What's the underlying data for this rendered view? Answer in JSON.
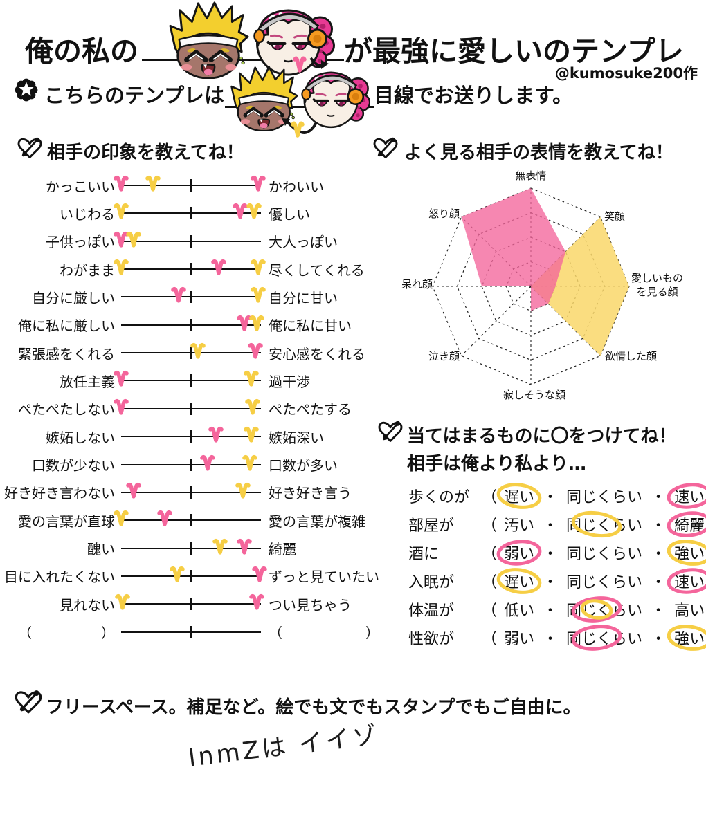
{
  "title": {
    "prefix": "俺の私の",
    "suffix": "が最強に愛しいのテンプレ",
    "credit": "@kumosuke200作"
  },
  "subtitle": {
    "prefix": "こちらのテンプレは",
    "suffix": "目線でお送りします。"
  },
  "colors": {
    "pink": "#F4659B",
    "yellow": "#F6CE45",
    "radar_pink": "#F4659B",
    "radar_yellow": "#F9D76A",
    "ink": "#111111",
    "blonde_hair": "#F3CF2E",
    "blonde_skin": "#A5766B",
    "pink_hair": "#E73A93",
    "pale_skin": "#F8EFE5",
    "headphone_orange": "#F59A20"
  },
  "characters": {
    "left": "blonde-spiky-hair-character",
    "right": "pink-haired-headphones-character"
  },
  "impressions": {
    "heading": "相手の印象を教えてね！",
    "rows": [
      {
        "left": "かっこいい",
        "right": "かわいい",
        "hearts": [
          {
            "c": "pink",
            "p": 0.0
          },
          {
            "c": "yellow",
            "p": 0.23
          },
          {
            "c": "pink",
            "p": 0.98
          }
        ]
      },
      {
        "left": "いじわる",
        "right": "優しい",
        "hearts": [
          {
            "c": "yellow",
            "p": 0.0
          },
          {
            "c": "pink",
            "p": 0.85
          },
          {
            "c": "yellow",
            "p": 0.95
          }
        ]
      },
      {
        "left": "子供っぽい",
        "right": "大人っぽい",
        "hearts": [
          {
            "c": "pink",
            "p": 0.0
          },
          {
            "c": "yellow",
            "p": 0.09
          }
        ]
      },
      {
        "left": "わがまま",
        "right": "尽くしてくれる",
        "hearts": [
          {
            "c": "yellow",
            "p": 0.0
          },
          {
            "c": "pink",
            "p": 0.7
          },
          {
            "c": "yellow",
            "p": 0.98
          }
        ]
      },
      {
        "left": "自分に厳しい",
        "right": "自分に甘い",
        "hearts": [
          {
            "c": "pink",
            "p": 0.41
          },
          {
            "c": "yellow",
            "p": 0.98
          }
        ]
      },
      {
        "left": "俺に私に厳しい",
        "right": "俺に私に甘い",
        "hearts": [
          {
            "c": "pink",
            "p": 0.88
          },
          {
            "c": "yellow",
            "p": 0.97
          }
        ]
      },
      {
        "left": "緊張感をくれる",
        "right": "安心感をくれる",
        "hearts": [
          {
            "c": "yellow",
            "p": 0.55
          },
          {
            "c": "pink",
            "p": 0.96
          }
        ]
      },
      {
        "left": "放任主義",
        "right": "過干渉",
        "hearts": [
          {
            "c": "pink",
            "p": 0.0
          },
          {
            "c": "yellow",
            "p": 0.93
          }
        ]
      },
      {
        "left": "ぺたぺたしない",
        "right": "ぺたぺたする",
        "hearts": [
          {
            "c": "pink",
            "p": 0.0
          },
          {
            "c": "yellow",
            "p": 0.94
          }
        ]
      },
      {
        "left": "嫉妬しない",
        "right": "嫉妬深い",
        "hearts": [
          {
            "c": "pink",
            "p": 0.68
          },
          {
            "c": "yellow",
            "p": 0.93
          }
        ]
      },
      {
        "left": "口数が少ない",
        "right": "口数が多い",
        "hearts": [
          {
            "c": "pink",
            "p": 0.62
          },
          {
            "c": "yellow",
            "p": 0.92
          }
        ]
      },
      {
        "left": "好き好き言わない",
        "right": "好き好き言う",
        "hearts": [
          {
            "c": "pink",
            "p": 0.09
          },
          {
            "c": "yellow",
            "p": 0.87
          }
        ]
      },
      {
        "left": "愛の言葉が直球",
        "right": "愛の言葉が複雑",
        "hearts": [
          {
            "c": "yellow",
            "p": 0.0
          },
          {
            "c": "pink",
            "p": 0.31
          }
        ]
      },
      {
        "left": "醜い",
        "right": "綺麗",
        "hearts": [
          {
            "c": "yellow",
            "p": 0.71
          },
          {
            "c": "pink",
            "p": 0.88
          }
        ]
      },
      {
        "left": "目に入れたくない",
        "right": "ずっと見ていたい",
        "hearts": [
          {
            "c": "yellow",
            "p": 0.4
          },
          {
            "c": "pink",
            "p": 0.99
          }
        ]
      },
      {
        "left": "見れない",
        "right": "つい見ちゃう",
        "hearts": [
          {
            "c": "yellow",
            "p": 0.01
          },
          {
            "c": "pink",
            "p": 0.97
          }
        ]
      },
      {
        "left": "（　　　　　）",
        "right": "（　　　　　　）",
        "hearts": [],
        "blank": true
      }
    ]
  },
  "expressions": {
    "heading": "よく見る相手の表情を教えてね！"
  },
  "chart_data": {
    "type": "radar",
    "title": "よく見る相手の表情を教えてね！",
    "categories": [
      "無表情",
      "笑顔",
      "愛しいものを見る顔",
      "欲情した顔",
      "寂しそうな顔",
      "泣き顔",
      "呆れ顔",
      "怒り顔"
    ],
    "label_lines": [
      [
        "無表情"
      ],
      [
        "笑顔"
      ],
      [
        "愛しいもの",
        "を見る顔"
      ],
      [
        "欲情した顔"
      ],
      [
        "寂しそうな顔"
      ],
      [
        "泣き顔"
      ],
      [
        "呆れ顔"
      ],
      [
        "怒り顔"
      ]
    ],
    "max": 4,
    "rings": 4,
    "grid": "dashed",
    "legend_position": "none",
    "series": [
      {
        "name": "pink",
        "color": "#F4659B",
        "values": [
          4,
          2,
          1,
          1,
          1,
          0,
          2,
          4
        ]
      },
      {
        "name": "yellow",
        "color": "#F9D76A",
        "values": [
          0,
          4,
          4,
          4,
          0,
          0,
          0,
          0
        ]
      }
    ]
  },
  "circles": {
    "heading1": "当てはまるものに〇をつけてね！",
    "heading2": "相手は俺より私より…",
    "open": "（",
    "close": "）",
    "dot": "・",
    "rows": [
      {
        "label": "歩くのが",
        "options": [
          "遅い",
          "同じくらい",
          "速い"
        ],
        "marks": [
          {
            "opt": 0,
            "c": "yellow"
          },
          {
            "opt": 2,
            "c": "pink"
          }
        ]
      },
      {
        "label": "部屋が",
        "options": [
          "汚い",
          "同じくらい",
          "綺麗"
        ],
        "marks": [
          {
            "opt": 1,
            "c": "yellow"
          },
          {
            "opt": 2,
            "c": "pink"
          }
        ]
      },
      {
        "label": "酒に",
        "options": [
          "弱い",
          "同じくらい",
          "強い"
        ],
        "marks": [
          {
            "opt": 0,
            "c": "pink"
          },
          {
            "opt": 2,
            "c": "yellow"
          }
        ]
      },
      {
        "label": "入眠が",
        "options": [
          "遅い",
          "同じくらい",
          "速い"
        ],
        "marks": [
          {
            "opt": 0,
            "c": "yellow"
          },
          {
            "opt": 2,
            "c": "pink"
          }
        ]
      },
      {
        "label": "体温が",
        "options": [
          "低い",
          "同じくらい",
          "高い"
        ],
        "marks": [
          {
            "opt": 1,
            "c": "pink"
          },
          {
            "opt": 1,
            "c": "yellow"
          }
        ]
      },
      {
        "label": "性欲が",
        "options": [
          "弱い",
          "同じくらい",
          "強い"
        ],
        "marks": [
          {
            "opt": 1,
            "c": "pink"
          },
          {
            "opt": 2,
            "c": "yellow"
          }
        ]
      }
    ]
  },
  "free_space": {
    "heading": "フリースペース。補足など。絵でも文でもスタンプでもご自由に。",
    "note": "InmZは イイゾ"
  }
}
